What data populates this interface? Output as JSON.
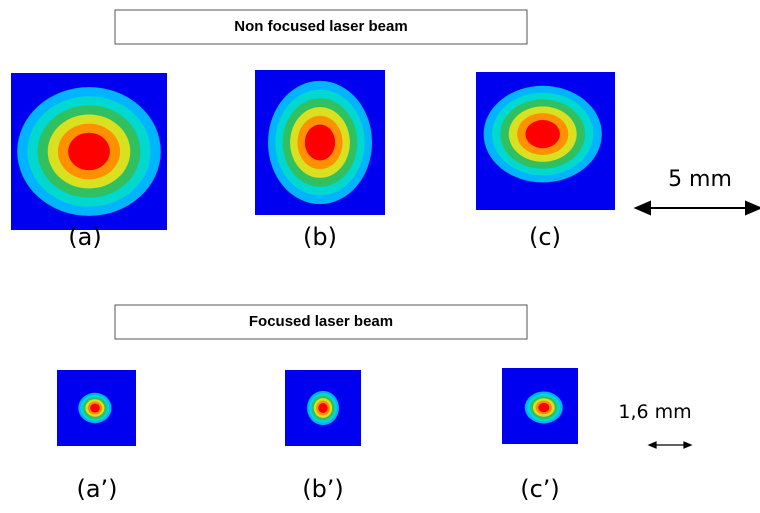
{
  "sections": [
    {
      "title": "Non focused laser beam",
      "panels": [
        {
          "label": "(a)"
        },
        {
          "label": "(b)"
        },
        {
          "label": "(c)"
        }
      ],
      "scale": "5 mm"
    },
    {
      "title": "Focused laser beam",
      "panels": [
        {
          "label": "(a’)"
        },
        {
          "label": "(b’)"
        },
        {
          "label": "(c’)"
        }
      ],
      "scale": "1,6 mm"
    }
  ]
}
